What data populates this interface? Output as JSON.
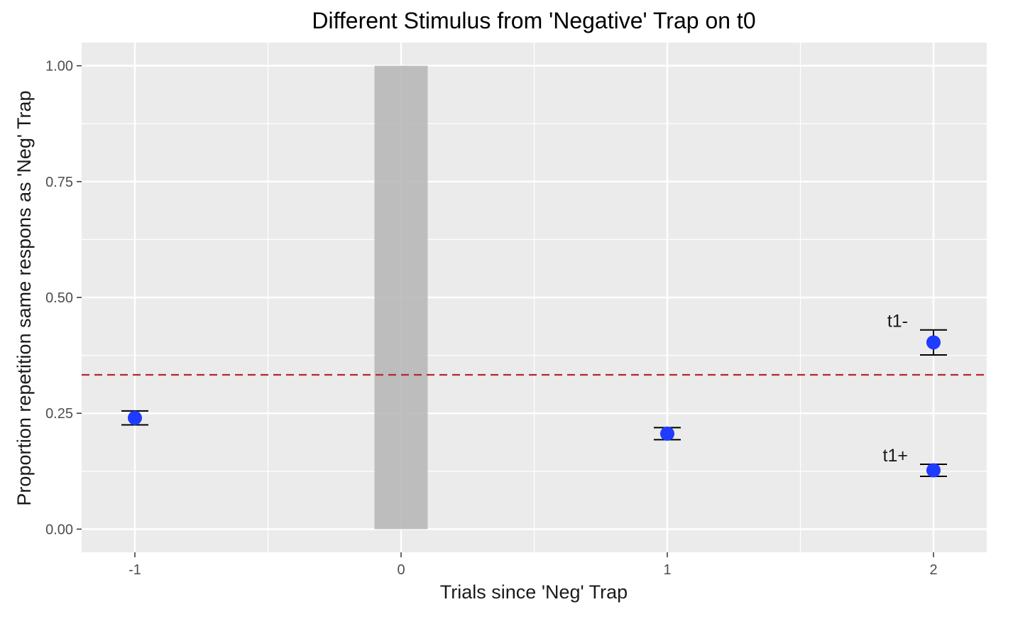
{
  "chart_data": {
    "type": "scatter",
    "title": "Different Stimulus from 'Negative' Trap on t0",
    "xlabel": "Trials since 'Neg' Trap",
    "ylabel": "Proportion repetition same respons as 'Neg' Trap",
    "xlim": [
      -1.2,
      2.2
    ],
    "ylim": [
      -0.05,
      1.05
    ],
    "x_ticks": [
      -1,
      0,
      1,
      2
    ],
    "x_tick_labels": [
      "-1",
      "0",
      "1",
      "2"
    ],
    "y_ticks": [
      0,
      0.25,
      0.5,
      0.75,
      1
    ],
    "y_tick_labels": [
      "0.00",
      "0.25",
      "0.50",
      "0.75",
      "1.00"
    ],
    "grid": true,
    "highlight_band": {
      "x_range": [
        -0.1,
        0.1
      ],
      "y_range": [
        0,
        1
      ],
      "color": "#b8b8b8"
    },
    "reference_line": {
      "y": 0.333,
      "style": "dashed",
      "color": "#b5282a"
    },
    "points": [
      {
        "x": -1,
        "y": 0.24,
        "ymin": 0.225,
        "ymax": 0.255,
        "label": ""
      },
      {
        "x": 1,
        "y": 0.206,
        "ymin": 0.193,
        "ymax": 0.219,
        "label": ""
      },
      {
        "x": 2,
        "y": 0.403,
        "ymin": 0.376,
        "ymax": 0.43,
        "label": "t1-"
      },
      {
        "x": 2,
        "y": 0.127,
        "ymin": 0.114,
        "ymax": 0.14,
        "label": "t1+"
      }
    ],
    "point_color": "#1f3bff",
    "errorbar_color": "#000000",
    "panel_background": "#ebebeb",
    "grid_color": "#ffffff"
  }
}
